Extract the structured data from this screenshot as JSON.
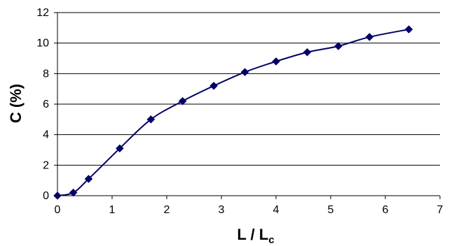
{
  "chart_data": {
    "type": "line",
    "title": "",
    "xlabel": "L / L",
    "xlabel_subscript": "c",
    "ylabel": "C (%)",
    "xlim": [
      0,
      7
    ],
    "ylim": [
      0,
      12
    ],
    "x_ticks": [
      "0",
      "1",
      "2",
      "3",
      "4",
      "5",
      "6",
      "7"
    ],
    "y_ticks": [
      "0",
      "2",
      "4",
      "6",
      "8",
      "10",
      "12"
    ],
    "grid": "horizontal",
    "legend": "none",
    "marker": "diamond",
    "smooth": true,
    "series": [
      {
        "color": "#000066",
        "x": [
          0,
          0.29,
          0.57,
          1.14,
          1.71,
          2.29,
          2.86,
          3.43,
          4.0,
          4.57,
          5.14,
          5.71,
          6.43
        ],
        "y": [
          0,
          0.2,
          1.1,
          3.1,
          5.0,
          6.2,
          7.2,
          8.1,
          8.8,
          9.4,
          9.8,
          10.4,
          10.9
        ]
      }
    ]
  }
}
